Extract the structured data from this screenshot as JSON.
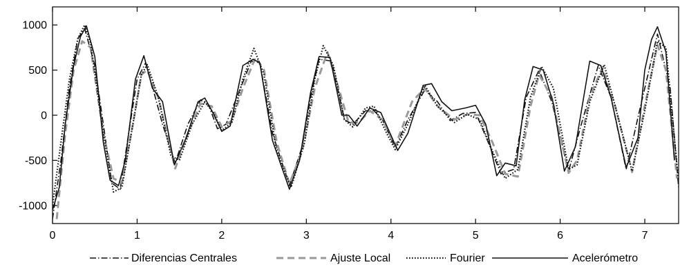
{
  "chart_data": {
    "type": "line",
    "title": "",
    "xlabel": "",
    "ylabel": "",
    "xlim": [
      0,
      7.4
    ],
    "ylim": [
      -1200,
      1200
    ],
    "xticks": [
      0,
      1,
      2,
      3,
      4,
      5,
      6,
      7
    ],
    "xtick_labels": [
      "0",
      "1",
      "2",
      "3",
      "4",
      "5",
      "6",
      "7"
    ],
    "yticks": [
      1000,
      500,
      0,
      -500,
      -1000
    ],
    "ytick_labels": [
      "1000",
      "500",
      "0",
      "-500",
      "-1000"
    ],
    "grid": false,
    "legend_position": "bottom",
    "series": [
      {
        "name": "Diferencias Centrales",
        "color": "#111111",
        "style": "dash-dot",
        "points": [
          [
            0,
            -1150
          ],
          [
            0.1,
            -500
          ],
          [
            0.2,
            300
          ],
          [
            0.3,
            850
          ],
          [
            0.38,
            960
          ],
          [
            0.5,
            550
          ],
          [
            0.6,
            -100
          ],
          [
            0.7,
            -750
          ],
          [
            0.8,
            -820
          ],
          [
            0.9,
            -200
          ],
          [
            1.0,
            400
          ],
          [
            1.1,
            580
          ],
          [
            1.2,
            250
          ],
          [
            1.3,
            -100
          ],
          [
            1.45,
            -530
          ],
          [
            1.6,
            -100
          ],
          [
            1.75,
            170
          ],
          [
            1.85,
            100
          ],
          [
            1.95,
            -150
          ],
          [
            2.05,
            -100
          ],
          [
            2.2,
            250
          ],
          [
            2.35,
            600
          ],
          [
            2.45,
            580
          ],
          [
            2.6,
            -200
          ],
          [
            2.8,
            -780
          ],
          [
            2.95,
            -350
          ],
          [
            3.05,
            200
          ],
          [
            3.15,
            620
          ],
          [
            3.3,
            600
          ],
          [
            3.45,
            -50
          ],
          [
            3.55,
            -100
          ],
          [
            3.7,
            50
          ],
          [
            3.8,
            50
          ],
          [
            3.9,
            -50
          ],
          [
            4.05,
            -360
          ],
          [
            4.2,
            -50
          ],
          [
            4.4,
            280
          ],
          [
            4.55,
            150
          ],
          [
            4.7,
            -60
          ],
          [
            4.85,
            20
          ],
          [
            5.0,
            30
          ],
          [
            5.15,
            -300
          ],
          [
            5.3,
            -650
          ],
          [
            5.45,
            -600
          ],
          [
            5.6,
            200
          ],
          [
            5.75,
            500
          ],
          [
            5.9,
            150
          ],
          [
            6.1,
            -620
          ],
          [
            6.25,
            -100
          ],
          [
            6.45,
            550
          ],
          [
            6.6,
            200
          ],
          [
            6.78,
            -600
          ],
          [
            6.95,
            100
          ],
          [
            7.15,
            900
          ],
          [
            7.3,
            300
          ],
          [
            7.4,
            -800
          ]
        ]
      },
      {
        "name": "Ajuste Local",
        "color": "#999999",
        "style": "dashed",
        "points": [
          [
            0.05,
            -1150
          ],
          [
            0.15,
            -200
          ],
          [
            0.25,
            500
          ],
          [
            0.35,
            820
          ],
          [
            0.45,
            750
          ],
          [
            0.6,
            -200
          ],
          [
            0.72,
            -700
          ],
          [
            0.82,
            -750
          ],
          [
            0.95,
            -100
          ],
          [
            1.05,
            450
          ],
          [
            1.12,
            500
          ],
          [
            1.25,
            200
          ],
          [
            1.35,
            -200
          ],
          [
            1.45,
            -590
          ],
          [
            1.6,
            -200
          ],
          [
            1.75,
            130
          ],
          [
            1.88,
            100
          ],
          [
            2.0,
            -130
          ],
          [
            2.12,
            -60
          ],
          [
            2.25,
            300
          ],
          [
            2.4,
            640
          ],
          [
            2.5,
            500
          ],
          [
            2.65,
            -300
          ],
          [
            2.8,
            -760
          ],
          [
            2.95,
            -400
          ],
          [
            3.1,
            300
          ],
          [
            3.25,
            700
          ],
          [
            3.35,
            400
          ],
          [
            3.5,
            -80
          ],
          [
            3.62,
            -80
          ],
          [
            3.75,
            50
          ],
          [
            3.9,
            -50
          ],
          [
            4.05,
            -340
          ],
          [
            4.25,
            150
          ],
          [
            4.4,
            300
          ],
          [
            4.55,
            100
          ],
          [
            4.75,
            -50
          ],
          [
            4.9,
            10
          ],
          [
            5.05,
            0
          ],
          [
            5.2,
            -300
          ],
          [
            5.35,
            -650
          ],
          [
            5.5,
            -680
          ],
          [
            5.65,
            100
          ],
          [
            5.75,
            450
          ],
          [
            5.9,
            200
          ],
          [
            6.1,
            -640
          ],
          [
            6.2,
            -500
          ],
          [
            6.35,
            200
          ],
          [
            6.5,
            530
          ],
          [
            6.65,
            100
          ],
          [
            6.85,
            -630
          ],
          [
            7.0,
            100
          ],
          [
            7.15,
            780
          ],
          [
            7.25,
            500
          ],
          [
            7.38,
            -700
          ]
        ]
      },
      {
        "name": "Fourier",
        "color": "#111111",
        "style": "dotted",
        "points": [
          [
            0,
            -1000
          ],
          [
            0.1,
            -300
          ],
          [
            0.2,
            400
          ],
          [
            0.3,
            850
          ],
          [
            0.38,
            1000
          ],
          [
            0.45,
            800
          ],
          [
            0.6,
            -200
          ],
          [
            0.72,
            -850
          ],
          [
            0.82,
            -800
          ],
          [
            0.95,
            -100
          ],
          [
            1.05,
            450
          ],
          [
            1.12,
            560
          ],
          [
            1.25,
            200
          ],
          [
            1.4,
            -450
          ],
          [
            1.5,
            -500
          ],
          [
            1.65,
            -100
          ],
          [
            1.8,
            150
          ],
          [
            1.9,
            30
          ],
          [
            2.0,
            -170
          ],
          [
            2.12,
            -80
          ],
          [
            2.25,
            400
          ],
          [
            2.38,
            740
          ],
          [
            2.5,
            450
          ],
          [
            2.65,
            -400
          ],
          [
            2.82,
            -800
          ],
          [
            2.98,
            -300
          ],
          [
            3.1,
            400
          ],
          [
            3.2,
            770
          ],
          [
            3.32,
            550
          ],
          [
            3.45,
            -50
          ],
          [
            3.55,
            -130
          ],
          [
            3.7,
            80
          ],
          [
            3.8,
            100
          ],
          [
            3.95,
            -200
          ],
          [
            4.05,
            -380
          ],
          [
            4.2,
            -100
          ],
          [
            4.4,
            330
          ],
          [
            4.55,
            100
          ],
          [
            4.75,
            -80
          ],
          [
            4.9,
            10
          ],
          [
            5.05,
            -50
          ],
          [
            5.2,
            -400
          ],
          [
            5.35,
            -700
          ],
          [
            5.5,
            -600
          ],
          [
            5.65,
            200
          ],
          [
            5.78,
            540
          ],
          [
            5.92,
            300
          ],
          [
            6.1,
            -600
          ],
          [
            6.2,
            -550
          ],
          [
            6.35,
            150
          ],
          [
            6.52,
            560
          ],
          [
            6.65,
            100
          ],
          [
            6.85,
            -620
          ],
          [
            7.0,
            50
          ],
          [
            7.15,
            820
          ],
          [
            7.25,
            750
          ],
          [
            7.4,
            -750
          ]
        ]
      },
      {
        "name": "Acelerómetro",
        "color": "#111111",
        "style": "solid",
        "points": [
          [
            0,
            -1050
          ],
          [
            0.08,
            -800
          ],
          [
            0.15,
            -100
          ],
          [
            0.25,
            550
          ],
          [
            0.33,
            870
          ],
          [
            0.4,
            990
          ],
          [
            0.5,
            650
          ],
          [
            0.6,
            -300
          ],
          [
            0.68,
            -720
          ],
          [
            0.78,
            -780
          ],
          [
            0.86,
            -500
          ],
          [
            0.98,
            400
          ],
          [
            1.08,
            660
          ],
          [
            1.18,
            300
          ],
          [
            1.3,
            150
          ],
          [
            1.44,
            -550
          ],
          [
            1.58,
            -250
          ],
          [
            1.72,
            150
          ],
          [
            1.8,
            190
          ],
          [
            1.9,
            20
          ],
          [
            2.0,
            -180
          ],
          [
            2.1,
            -120
          ],
          [
            2.25,
            550
          ],
          [
            2.37,
            620
          ],
          [
            2.45,
            580
          ],
          [
            2.6,
            -280
          ],
          [
            2.8,
            -820
          ],
          [
            2.92,
            -500
          ],
          [
            3.05,
            250
          ],
          [
            3.15,
            650
          ],
          [
            3.28,
            640
          ],
          [
            3.42,
            0
          ],
          [
            3.5,
            0
          ],
          [
            3.6,
            -120
          ],
          [
            3.75,
            80
          ],
          [
            3.88,
            30
          ],
          [
            4.08,
            -390
          ],
          [
            4.2,
            -200
          ],
          [
            4.38,
            330
          ],
          [
            4.48,
            350
          ],
          [
            4.6,
            150
          ],
          [
            4.72,
            50
          ],
          [
            4.88,
            80
          ],
          [
            5.0,
            110
          ],
          [
            5.12,
            -100
          ],
          [
            5.25,
            -670
          ],
          [
            5.35,
            -530
          ],
          [
            5.48,
            -560
          ],
          [
            5.58,
            170
          ],
          [
            5.68,
            540
          ],
          [
            5.8,
            500
          ],
          [
            5.92,
            130
          ],
          [
            6.05,
            -620
          ],
          [
            6.18,
            -350
          ],
          [
            6.35,
            600
          ],
          [
            6.48,
            550
          ],
          [
            6.6,
            200
          ],
          [
            6.78,
            -580
          ],
          [
            6.92,
            -250
          ],
          [
            7.0,
            500
          ],
          [
            7.08,
            840
          ],
          [
            7.15,
            980
          ],
          [
            7.25,
            700
          ],
          [
            7.35,
            -500
          ]
        ]
      }
    ]
  }
}
